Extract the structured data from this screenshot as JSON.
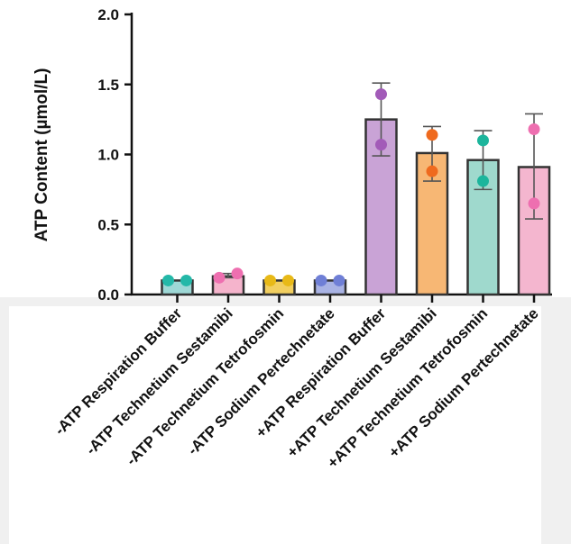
{
  "chart_data": {
    "type": "bar",
    "ylabel": "ATP Content (µmol/L)",
    "xlabel": "",
    "title": "",
    "ylim": [
      0,
      2.0
    ],
    "yticks": [
      "0.0",
      "0.5",
      "1.0",
      "1.5",
      "2.0"
    ],
    "categories": [
      "-ATP Respiration Buffer",
      "-ATP Technetium Sestamibi",
      "-ATP Technetium Tetrofosmin",
      "-ATP Sodium Pertechnetate",
      "+ATP Respiration Buffer",
      "+ATP Technetium Sestamibi",
      "+ATP Technetium Tetrofosmin",
      "+ATP Sodium Pertechnetate"
    ],
    "values": [
      0.1,
      0.13,
      0.1,
      0.1,
      1.25,
      1.01,
      0.96,
      0.91
    ],
    "error_low": [
      0.1,
      0.12,
      0.1,
      0.1,
      0.99,
      0.81,
      0.75,
      0.54
    ],
    "error_high": [
      0.1,
      0.15,
      0.1,
      0.1,
      1.51,
      1.2,
      1.17,
      1.29
    ],
    "points": [
      [
        0.1,
        0.1
      ],
      [
        0.12,
        0.15
      ],
      [
        0.1,
        0.1
      ],
      [
        0.1,
        0.1
      ],
      [
        1.43,
        1.07
      ],
      [
        1.14,
        0.88
      ],
      [
        1.1,
        0.81
      ],
      [
        1.18,
        0.65
      ]
    ],
    "bar_colors": [
      "#9ed8d6",
      "#f5b4cc",
      "#f2cf60",
      "#a9b3e4",
      "#c9a3d6",
      "#f7b774",
      "#9fd9cd",
      "#f4b6cf"
    ],
    "point_colors": [
      "#24b8a8",
      "#ee6fb0",
      "#e8b917",
      "#6f7fd6",
      "#a25bb8",
      "#ef6a1e",
      "#1cb59c",
      "#ee6fb0"
    ],
    "grid": false,
    "legend": "none"
  }
}
